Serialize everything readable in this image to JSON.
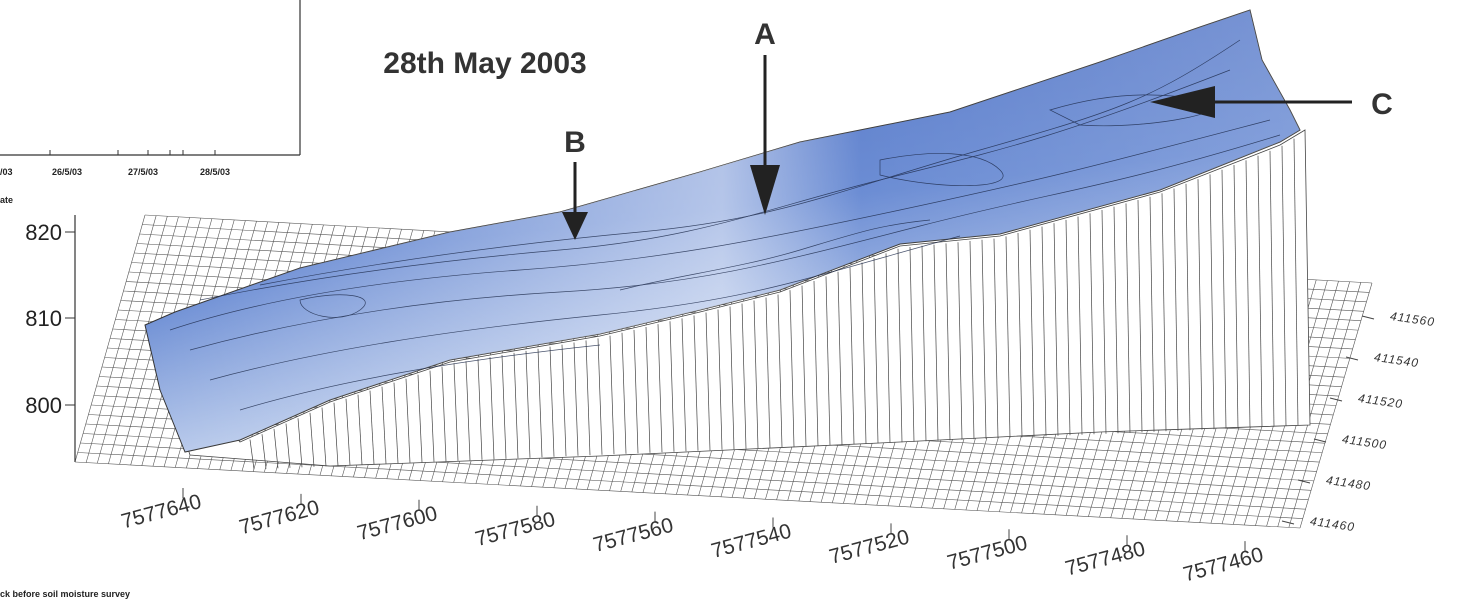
{
  "inset": {
    "x_tick_labels": [
      "/03",
      "26/5/03",
      "27/5/03",
      "28/5/03"
    ],
    "x_label": "ate"
  },
  "title": "28th May 2003",
  "annotations": [
    "A",
    "B",
    "C"
  ],
  "z_axis": {
    "ticks": [
      820,
      810,
      800
    ]
  },
  "x_axis": {
    "ticks": [
      7577640,
      7577620,
      7577600,
      7577580,
      7577560,
      7577540,
      7577520,
      7577500,
      7577480,
      7577460
    ]
  },
  "y_axis": {
    "ticks": [
      411560,
      411540,
      411520,
      411500,
      411480,
      411460
    ]
  },
  "caption": "ck before soil moisture survey"
}
